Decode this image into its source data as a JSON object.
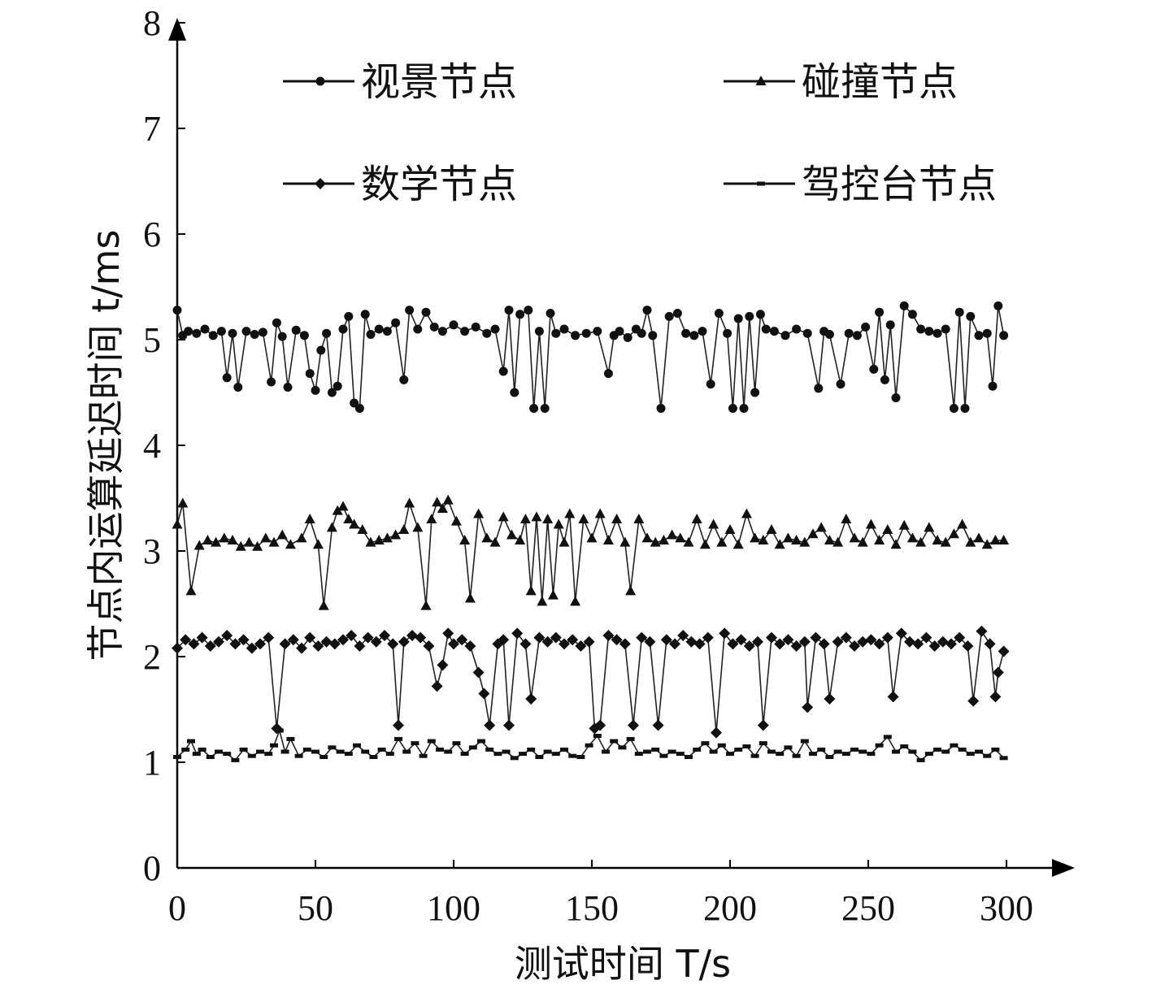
{
  "chart_data": {
    "type": "line",
    "xlabel": "测试时间 T/s",
    "ylabel": "节点内运算延迟时间 t/ms",
    "xlim": [
      0,
      300
    ],
    "ylim": [
      0,
      8
    ],
    "xticks": [
      0,
      50,
      100,
      150,
      200,
      250,
      300
    ],
    "yticks": [
      0,
      1,
      2,
      3,
      4,
      5,
      6,
      7,
      8
    ],
    "grid": false,
    "legend_position": "top",
    "series": [
      {
        "name": "视景节点",
        "marker": "circle",
        "x": [
          0,
          2,
          4,
          7,
          10,
          13,
          16,
          18,
          20,
          22,
          25,
          28,
          31,
          34,
          36,
          38,
          40,
          43,
          46,
          48,
          50,
          52,
          54,
          56,
          58,
          60,
          62,
          64,
          66,
          68,
          70,
          73,
          76,
          79,
          82,
          84,
          87,
          90,
          93,
          96,
          100,
          104,
          108,
          112,
          115,
          118,
          120,
          122,
          124,
          127,
          129,
          131,
          133,
          135,
          137,
          140,
          144,
          148,
          152,
          156,
          158,
          160,
          163,
          166,
          168,
          170,
          172,
          175,
          178,
          181,
          184,
          187,
          190,
          193,
          196,
          199,
          201,
          203,
          205,
          207,
          209,
          211,
          213,
          216,
          220,
          224,
          228,
          232,
          234,
          236,
          240,
          243,
          246,
          249,
          252,
          254,
          256,
          258,
          260,
          263,
          266,
          269,
          272,
          275,
          278,
          281,
          283,
          285,
          287,
          290,
          293,
          295,
          297,
          299
        ],
        "y": [
          5.28,
          5.04,
          5.08,
          5.06,
          5.1,
          5.04,
          5.08,
          4.64,
          5.06,
          4.55,
          5.08,
          5.05,
          5.07,
          4.6,
          5.16,
          5.03,
          4.55,
          5.09,
          5.04,
          4.68,
          4.52,
          4.9,
          5.06,
          4.5,
          4.56,
          5.1,
          5.22,
          4.4,
          4.35,
          5.24,
          5.05,
          5.1,
          5.08,
          5.16,
          4.62,
          5.28,
          5.1,
          5.26,
          5.12,
          5.08,
          5.14,
          5.08,
          5.12,
          5.06,
          5.1,
          4.7,
          5.28,
          4.5,
          5.24,
          5.28,
          4.35,
          5.08,
          4.35,
          5.25,
          5.06,
          5.1,
          5.04,
          5.06,
          5.08,
          4.68,
          5.04,
          5.08,
          5.02,
          5.1,
          5.06,
          5.28,
          5.04,
          4.35,
          5.22,
          5.25,
          5.06,
          5.04,
          5.08,
          4.58,
          5.25,
          5.06,
          4.35,
          5.2,
          4.35,
          5.22,
          4.5,
          5.24,
          5.1,
          5.08,
          5.04,
          5.1,
          5.06,
          4.54,
          5.08,
          5.05,
          4.58,
          5.06,
          5.04,
          5.12,
          4.72,
          5.26,
          4.62,
          5.14,
          4.45,
          5.32,
          5.24,
          5.1,
          5.08,
          5.06,
          5.1,
          4.35,
          5.26,
          4.35,
          5.22,
          5.04,
          5.06,
          4.56,
          5.32,
          5.04
        ]
      },
      {
        "name": "碰撞节点",
        "marker": "triangle",
        "x": [
          0,
          2,
          5,
          8,
          11,
          14,
          17,
          20,
          23,
          26,
          29,
          32,
          35,
          38,
          41,
          45,
          48,
          51,
          53,
          56,
          58,
          60,
          62,
          64,
          67,
          70,
          73,
          76,
          79,
          82,
          84,
          87,
          90,
          92,
          94,
          96,
          98,
          101,
          104,
          106,
          109,
          112,
          115,
          118,
          121,
          124,
          126,
          128,
          130,
          132,
          134,
          136,
          138,
          140,
          142,
          144,
          147,
          150,
          153,
          156,
          159,
          162,
          164,
          167,
          170,
          173,
          176,
          179,
          182,
          185,
          188,
          191,
          194,
          197,
          200,
          203,
          206,
          209,
          212,
          215,
          218,
          221,
          224,
          227,
          230,
          233,
          236,
          239,
          242,
          245,
          248,
          251,
          254,
          257,
          260,
          263,
          266,
          269,
          272,
          275,
          278,
          281,
          284,
          287,
          290,
          293,
          296,
          299
        ],
        "y": [
          3.25,
          3.45,
          2.62,
          3.05,
          3.1,
          3.08,
          3.12,
          3.1,
          3.04,
          3.08,
          3.04,
          3.12,
          3.08,
          3.15,
          3.06,
          3.12,
          3.3,
          3.06,
          2.48,
          3.22,
          3.38,
          3.42,
          3.3,
          3.25,
          3.2,
          3.08,
          3.1,
          3.12,
          3.15,
          3.2,
          3.45,
          3.22,
          2.48,
          3.3,
          3.46,
          3.4,
          3.48,
          3.28,
          3.1,
          2.55,
          3.35,
          3.12,
          3.08,
          3.32,
          3.15,
          3.1,
          3.3,
          2.62,
          3.32,
          2.52,
          3.3,
          2.58,
          3.25,
          3.08,
          3.35,
          2.52,
          3.3,
          3.12,
          3.35,
          3.1,
          3.3,
          3.08,
          2.62,
          3.3,
          3.12,
          3.08,
          3.1,
          3.15,
          3.12,
          3.08,
          3.3,
          3.06,
          3.25,
          3.08,
          3.2,
          3.06,
          3.35,
          3.12,
          3.1,
          3.2,
          3.06,
          3.12,
          3.1,
          3.08,
          3.16,
          3.22,
          3.1,
          3.08,
          3.3,
          3.12,
          3.08,
          3.25,
          3.1,
          3.2,
          3.06,
          3.24,
          3.12,
          3.08,
          3.22,
          3.1,
          3.08,
          3.16,
          3.25,
          3.08,
          3.12,
          3.06,
          3.1,
          3.1
        ]
      },
      {
        "name": "数学节点",
        "marker": "diamond",
        "x": [
          0,
          3,
          6,
          9,
          12,
          15,
          18,
          21,
          24,
          27,
          30,
          33,
          36,
          39,
          42,
          45,
          48,
          51,
          54,
          57,
          60,
          63,
          66,
          69,
          72,
          75,
          78,
          80,
          82,
          85,
          88,
          91,
          94,
          96,
          98,
          100,
          103,
          106,
          109,
          111,
          113,
          116,
          118,
          120,
          123,
          126,
          128,
          131,
          134,
          137,
          140,
          143,
          146,
          149,
          151,
          153,
          156,
          159,
          162,
          165,
          168,
          171,
          174,
          177,
          180,
          183,
          186,
          189,
          192,
          195,
          198,
          201,
          204,
          207,
          210,
          212,
          215,
          218,
          221,
          224,
          227,
          228,
          231,
          234,
          236,
          239,
          242,
          245,
          248,
          251,
          254,
          257,
          259,
          262,
          265,
          268,
          271,
          274,
          277,
          280,
          283,
          286,
          288,
          291,
          294,
          296,
          297,
          299
        ],
        "y": [
          2.08,
          2.16,
          2.12,
          2.18,
          2.1,
          2.14,
          2.2,
          2.12,
          2.16,
          2.08,
          2.12,
          2.18,
          1.32,
          2.12,
          2.16,
          2.08,
          2.18,
          2.1,
          2.14,
          2.12,
          2.16,
          2.2,
          2.1,
          2.18,
          2.14,
          2.2,
          2.12,
          1.35,
          2.14,
          2.2,
          2.18,
          2.1,
          1.72,
          1.92,
          2.22,
          2.12,
          2.16,
          2.1,
          1.85,
          1.65,
          1.35,
          2.12,
          2.16,
          1.35,
          2.22,
          2.12,
          1.6,
          2.18,
          2.14,
          2.18,
          2.12,
          2.16,
          2.1,
          2.14,
          1.32,
          1.35,
          2.2,
          2.16,
          2.12,
          1.35,
          2.18,
          2.14,
          1.35,
          2.16,
          2.12,
          2.2,
          2.14,
          2.12,
          2.18,
          1.28,
          2.22,
          2.12,
          2.16,
          2.1,
          2.14,
          1.35,
          2.18,
          2.12,
          2.16,
          2.1,
          2.14,
          1.52,
          2.18,
          2.12,
          1.6,
          2.14,
          2.18,
          2.1,
          2.14,
          2.16,
          2.12,
          2.18,
          1.62,
          2.22,
          2.14,
          2.12,
          2.18,
          2.1,
          2.14,
          2.12,
          2.18,
          2.1,
          1.58,
          2.24,
          2.12,
          1.62,
          1.85,
          2.05
        ]
      },
      {
        "name": "驾控台节点",
        "marker": "dash",
        "x": [
          0,
          3,
          5,
          7,
          9,
          12,
          15,
          18,
          21,
          24,
          27,
          30,
          33,
          35,
          37,
          39,
          41,
          44,
          47,
          50,
          53,
          56,
          59,
          62,
          65,
          68,
          71,
          74,
          77,
          80,
          83,
          86,
          89,
          92,
          95,
          98,
          101,
          104,
          107,
          110,
          113,
          116,
          119,
          122,
          125,
          128,
          131,
          134,
          137,
          140,
          143,
          146,
          149,
          152,
          155,
          158,
          161,
          164,
          167,
          170,
          173,
          176,
          179,
          182,
          185,
          188,
          191,
          194,
          197,
          200,
          203,
          206,
          209,
          212,
          215,
          218,
          221,
          224,
          227,
          230,
          233,
          236,
          239,
          242,
          245,
          248,
          251,
          254,
          257,
          260,
          263,
          266,
          269,
          272,
          275,
          278,
          281,
          284,
          287,
          290,
          293,
          296,
          299
        ],
        "y": [
          1.05,
          1.12,
          1.2,
          1.08,
          1.12,
          1.05,
          1.1,
          1.08,
          1.02,
          1.12,
          1.06,
          1.1,
          1.08,
          1.16,
          1.3,
          1.1,
          1.22,
          1.06,
          1.12,
          1.1,
          1.05,
          1.14,
          1.1,
          1.08,
          1.16,
          1.1,
          1.05,
          1.12,
          1.08,
          1.22,
          1.1,
          1.18,
          1.06,
          1.2,
          1.12,
          1.1,
          1.18,
          1.08,
          1.14,
          1.2,
          1.12,
          1.08,
          1.1,
          1.04,
          1.08,
          1.12,
          1.05,
          1.1,
          1.08,
          1.12,
          1.06,
          1.05,
          1.16,
          1.25,
          1.1,
          1.2,
          1.14,
          1.22,
          1.08,
          1.1,
          1.12,
          1.06,
          1.1,
          1.08,
          1.05,
          1.12,
          1.18,
          1.1,
          1.16,
          1.08,
          1.12,
          1.15,
          1.06,
          1.18,
          1.1,
          1.08,
          1.14,
          1.06,
          1.2,
          1.08,
          1.12,
          1.05,
          1.1,
          1.08,
          1.12,
          1.1,
          1.08,
          1.16,
          1.24,
          1.1,
          1.15,
          1.1,
          1.02,
          1.08,
          1.12,
          1.1,
          1.16,
          1.12,
          1.08,
          1.1,
          1.06,
          1.12,
          1.04
        ]
      }
    ]
  }
}
